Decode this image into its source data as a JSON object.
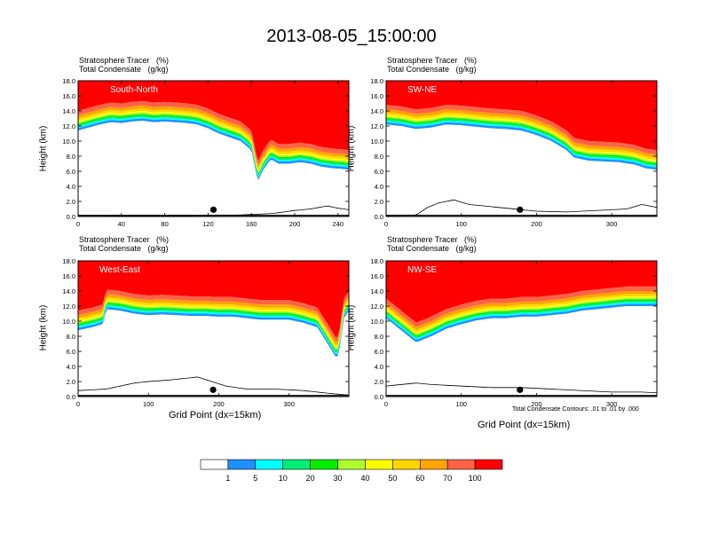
{
  "figure": {
    "title": "2013-08-05_15:00:00",
    "var_label_1": "Stratosphere Tracer   (%)",
    "var_label_2": "Total Condensate   (g/kg)",
    "xlabel": "Grid Point (dx=15km)",
    "ylabel": "Height (km)",
    "contour_note": "Total Condensate Contours: .01 to .01 by .000"
  },
  "colorbar": {
    "levels": [
      "1",
      "5",
      "10",
      "20",
      "30",
      "40",
      "50",
      "60",
      "70",
      "100"
    ],
    "colors": [
      "#ffffff",
      "#1e90ff",
      "#00ffff",
      "#00ee76",
      "#00ee00",
      "#adff2f",
      "#ffff00",
      "#ffd700",
      "#ffa500",
      "#ff6347",
      "#ff0000"
    ]
  },
  "chart_data": [
    {
      "type": "heatmap",
      "panel_label": "South-North",
      "xlim": [
        0,
        250
      ],
      "ylim": [
        0,
        18
      ],
      "x_ticks": [
        "0",
        "40",
        "80",
        "120",
        "160",
        "200",
        "240"
      ],
      "x_tick_values": [
        0,
        40,
        80,
        120,
        160,
        200,
        240
      ],
      "y_ticks": [
        "0.0",
        "2.0",
        "4.0",
        "6.0",
        "8.0",
        "10.0",
        "12.0",
        "14.0",
        "16.0",
        "18.0"
      ],
      "tropopause_km": [
        [
          0,
          14
        ],
        [
          10,
          14.4
        ],
        [
          20,
          14.8
        ],
        [
          30,
          15.1
        ],
        [
          40,
          15
        ],
        [
          50,
          15.2
        ],
        [
          60,
          15.3
        ],
        [
          70,
          15.1
        ],
        [
          80,
          15.2
        ],
        [
          90,
          15.1
        ],
        [
          100,
          15
        ],
        [
          110,
          14.8
        ],
        [
          120,
          14.3
        ],
        [
          130,
          13.6
        ],
        [
          140,
          13.1
        ],
        [
          150,
          12.6
        ],
        [
          160,
          11.4
        ],
        [
          166,
          7.2
        ],
        [
          170,
          8.6
        ],
        [
          178,
          10.2
        ],
        [
          185,
          9.6
        ],
        [
          195,
          9.6
        ],
        [
          205,
          9.8
        ],
        [
          215,
          9.6
        ],
        [
          225,
          9.2
        ],
        [
          235,
          9.0
        ],
        [
          245,
          8.9
        ],
        [
          250,
          8.8
        ]
      ],
      "terrain_km": [
        [
          0,
          0.05
        ],
        [
          100,
          0.1
        ],
        [
          150,
          0.2
        ],
        [
          180,
          0.4
        ],
        [
          200,
          0.8
        ],
        [
          215,
          1.0
        ],
        [
          230,
          1.4
        ],
        [
          240,
          1.1
        ],
        [
          250,
          0.9
        ]
      ],
      "marker_x": 125
    },
    {
      "type": "heatmap",
      "panel_label": "SW-NE",
      "xlim": [
        0,
        360
      ],
      "ylim": [
        0,
        18
      ],
      "x_ticks": [
        "0",
        "100",
        "200",
        "300"
      ],
      "x_tick_values": [
        0,
        100,
        200,
        300
      ],
      "y_ticks": [
        "0.0",
        "2.0",
        "4.0",
        "6.0",
        "8.0",
        "10.0",
        "12.0",
        "14.0",
        "16.0",
        "18.0"
      ],
      "tropopause_km": [
        [
          0,
          14.8
        ],
        [
          20,
          14.6
        ],
        [
          40,
          14.2
        ],
        [
          60,
          14.4
        ],
        [
          80,
          14.8
        ],
        [
          100,
          14.7
        ],
        [
          120,
          14.5
        ],
        [
          140,
          14.3
        ],
        [
          160,
          14.2
        ],
        [
          180,
          14.0
        ],
        [
          200,
          13.4
        ],
        [
          220,
          12.6
        ],
        [
          240,
          11.4
        ],
        [
          250,
          10.4
        ],
        [
          270,
          10.0
        ],
        [
          290,
          9.9
        ],
        [
          310,
          9.8
        ],
        [
          330,
          9.5
        ],
        [
          345,
          9.0
        ],
        [
          360,
          8.8
        ]
      ],
      "terrain_km": [
        [
          0,
          0.1
        ],
        [
          40,
          0.2
        ],
        [
          55,
          1.2
        ],
        [
          70,
          1.8
        ],
        [
          90,
          2.2
        ],
        [
          110,
          1.6
        ],
        [
          130,
          1.4
        ],
        [
          160,
          1.1
        ],
        [
          200,
          0.7
        ],
        [
          240,
          0.6
        ],
        [
          280,
          0.8
        ],
        [
          320,
          1.0
        ],
        [
          340,
          1.6
        ],
        [
          360,
          1.2
        ]
      ],
      "marker_x": 178
    },
    {
      "type": "heatmap",
      "panel_label": "West-East",
      "xlim": [
        0,
        385
      ],
      "ylim": [
        0,
        18
      ],
      "x_ticks": [
        "0",
        "100",
        "200",
        "300"
      ],
      "x_tick_values": [
        0,
        100,
        200,
        300
      ],
      "y_ticks": [
        "0.0",
        "2.0",
        "4.0",
        "6.0",
        "8.0",
        "10.0",
        "12.0",
        "14.0",
        "16.0",
        "18.0"
      ],
      "tropopause_km": [
        [
          0,
          11.4
        ],
        [
          20,
          11.8
        ],
        [
          35,
          12.2
        ],
        [
          40,
          14.2
        ],
        [
          60,
          14.0
        ],
        [
          80,
          13.6
        ],
        [
          100,
          13.4
        ],
        [
          120,
          13.5
        ],
        [
          140,
          13.4
        ],
        [
          160,
          13.3
        ],
        [
          180,
          13.3
        ],
        [
          200,
          13.2
        ],
        [
          220,
          13.2
        ],
        [
          240,
          13.0
        ],
        [
          260,
          12.8
        ],
        [
          280,
          12.8
        ],
        [
          300,
          12.8
        ],
        [
          320,
          12.4
        ],
        [
          340,
          11.8
        ],
        [
          355,
          9.6
        ],
        [
          368,
          7.6
        ],
        [
          372,
          9.0
        ],
        [
          378,
          13.0
        ],
        [
          385,
          14.0
        ]
      ],
      "terrain_km": [
        [
          0,
          0.8
        ],
        [
          40,
          1.0
        ],
        [
          60,
          1.4
        ],
        [
          80,
          1.8
        ],
        [
          100,
          2.0
        ],
        [
          130,
          2.2
        ],
        [
          150,
          2.4
        ],
        [
          170,
          2.6
        ],
        [
          190,
          2.0
        ],
        [
          210,
          1.4
        ],
        [
          240,
          1.0
        ],
        [
          280,
          1.0
        ],
        [
          320,
          0.8
        ],
        [
          360,
          0.4
        ],
        [
          385,
          0.2
        ]
      ],
      "marker_x": 192
    },
    {
      "type": "heatmap",
      "panel_label": "NW-SE",
      "xlim": [
        0,
        360
      ],
      "ylim": [
        0,
        18
      ],
      "x_ticks": [
        "0",
        "100",
        "200",
        "300"
      ],
      "x_tick_values": [
        0,
        100,
        200,
        300
      ],
      "y_ticks": [
        "0.0",
        "2.0",
        "4.0",
        "6.0",
        "8.0",
        "10.0",
        "12.0",
        "14.0",
        "16.0",
        "18.0"
      ],
      "tropopause_km": [
        [
          0,
          13.0
        ],
        [
          20,
          11.4
        ],
        [
          40,
          9.8
        ],
        [
          60,
          10.6
        ],
        [
          80,
          11.6
        ],
        [
          100,
          12.2
        ],
        [
          120,
          12.7
        ],
        [
          140,
          13.0
        ],
        [
          160,
          13.0
        ],
        [
          180,
          13.2
        ],
        [
          200,
          13.2
        ],
        [
          220,
          13.4
        ],
        [
          240,
          13.6
        ],
        [
          260,
          14.0
        ],
        [
          280,
          14.2
        ],
        [
          300,
          14.4
        ],
        [
          320,
          14.6
        ],
        [
          340,
          14.6
        ],
        [
          360,
          14.6
        ]
      ],
      "terrain_km": [
        [
          0,
          1.4
        ],
        [
          20,
          1.6
        ],
        [
          40,
          1.8
        ],
        [
          60,
          1.6
        ],
        [
          100,
          1.4
        ],
        [
          140,
          1.2
        ],
        [
          180,
          1.2
        ],
        [
          220,
          1.0
        ],
        [
          260,
          0.8
        ],
        [
          300,
          0.6
        ],
        [
          340,
          0.6
        ],
        [
          360,
          0.5
        ]
      ],
      "marker_x": 178
    }
  ]
}
